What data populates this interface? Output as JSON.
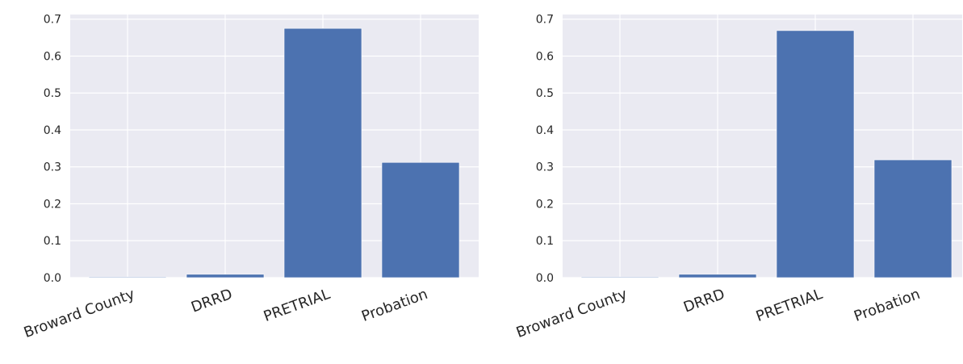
{
  "chart_data": [
    {
      "type": "bar",
      "categories": [
        "Broward County",
        "DRRD",
        "PRETRIAL",
        "Probation"
      ],
      "values": [
        0.002,
        0.009,
        0.675,
        0.312
      ],
      "ylim": [
        0,
        0.7
      ],
      "yticks": [
        0.0,
        0.1,
        0.2,
        0.3,
        0.4,
        0.5,
        0.6,
        0.7
      ],
      "ytick_labels": [
        "0.0",
        "0.1",
        "0.2",
        "0.3",
        "0.4",
        "0.5",
        "0.6",
        "0.7"
      ],
      "grid": true,
      "colors": {
        "bar": "#4c72b0",
        "background": "#eaeaf2",
        "grid": "#ffffff"
      }
    },
    {
      "type": "bar",
      "categories": [
        "Broward County",
        "DRRD",
        "PRETRIAL",
        "Probation"
      ],
      "values": [
        0.002,
        0.009,
        0.669,
        0.319
      ],
      "ylim": [
        0,
        0.7
      ],
      "yticks": [
        0.0,
        0.1,
        0.2,
        0.3,
        0.4,
        0.5,
        0.6,
        0.7
      ],
      "ytick_labels": [
        "0.0",
        "0.1",
        "0.2",
        "0.3",
        "0.4",
        "0.5",
        "0.6",
        "0.7"
      ],
      "grid": true,
      "colors": {
        "bar": "#4c72b0",
        "background": "#eaeaf2",
        "grid": "#ffffff"
      }
    }
  ]
}
